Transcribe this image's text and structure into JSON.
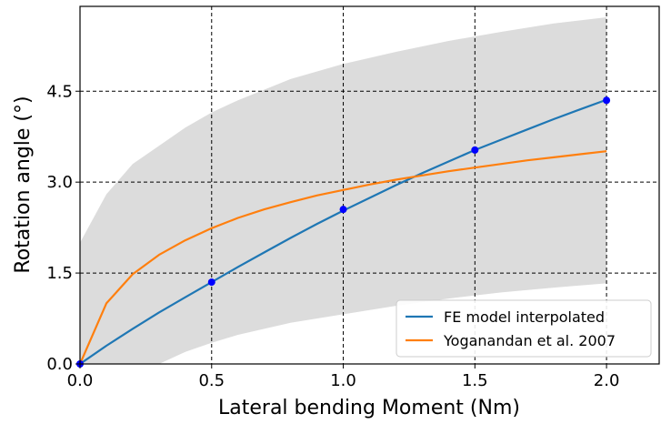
{
  "chart_data": {
    "type": "line",
    "xlabel": "Lateral bending Moment (Nm)",
    "ylabel": "Rotation angle (°)",
    "xlim": [
      0,
      2.2
    ],
    "ylim": [
      0,
      5.9
    ],
    "x_ticks": [
      0.0,
      0.5,
      1.0,
      1.5,
      2.0
    ],
    "x_tick_labels": [
      "0.0",
      "0.5",
      "1.0",
      "1.5",
      "2.0"
    ],
    "y_ticks": [
      0.0,
      1.5,
      3.0,
      4.5
    ],
    "y_tick_labels": [
      "0.0",
      "1.5",
      "3.0",
      "4.5"
    ],
    "grid": true,
    "grid_style": "dashed",
    "legend_position": "lower-right",
    "band": {
      "color": "#dcdcdc",
      "x": [
        0,
        0.1,
        0.2,
        0.3,
        0.4,
        0.5,
        0.6,
        0.8,
        1.0,
        1.2,
        1.4,
        1.6,
        1.8,
        2.0
      ],
      "upper": [
        2.0,
        2.8,
        3.3,
        3.6,
        3.9,
        4.15,
        4.35,
        4.7,
        4.95,
        5.15,
        5.33,
        5.48,
        5.62,
        5.72
      ],
      "lower": [
        0.0,
        0.0,
        0.0,
        0.0,
        0.2,
        0.35,
        0.48,
        0.68,
        0.82,
        0.96,
        1.08,
        1.18,
        1.26,
        1.33
      ]
    },
    "series": [
      {
        "name": "FE model interpolated",
        "color": "#1f77b4",
        "x": [
          0,
          0.1,
          0.2,
          0.3,
          0.4,
          0.5,
          0.6,
          0.7,
          0.8,
          0.9,
          1.0,
          1.1,
          1.2,
          1.3,
          1.4,
          1.5,
          1.6,
          1.7,
          1.8,
          1.9,
          2.0
        ],
        "y": [
          0,
          0.3,
          0.58,
          0.85,
          1.1,
          1.35,
          1.6,
          1.84,
          2.08,
          2.31,
          2.53,
          2.74,
          2.95,
          3.15,
          3.34,
          3.53,
          3.7,
          3.87,
          4.04,
          4.2,
          4.36
        ]
      },
      {
        "name": "Yoganandan et al. 2007",
        "color": "#ff7f0e",
        "x": [
          0,
          0.1,
          0.2,
          0.3,
          0.4,
          0.5,
          0.6,
          0.7,
          0.8,
          0.9,
          1.0,
          1.1,
          1.2,
          1.3,
          1.4,
          1.5,
          1.6,
          1.7,
          1.8,
          1.9,
          2.0
        ],
        "y": [
          0,
          1.0,
          1.48,
          1.8,
          2.04,
          2.24,
          2.41,
          2.55,
          2.67,
          2.78,
          2.87,
          2.96,
          3.04,
          3.11,
          3.18,
          3.24,
          3.3,
          3.36,
          3.41,
          3.46,
          3.51
        ]
      }
    ],
    "markers": {
      "color": "#0000ff",
      "x": [
        0.0,
        0.5,
        1.0,
        1.5,
        2.0
      ],
      "y": [
        0.0,
        1.35,
        2.55,
        3.53,
        4.35
      ]
    }
  }
}
